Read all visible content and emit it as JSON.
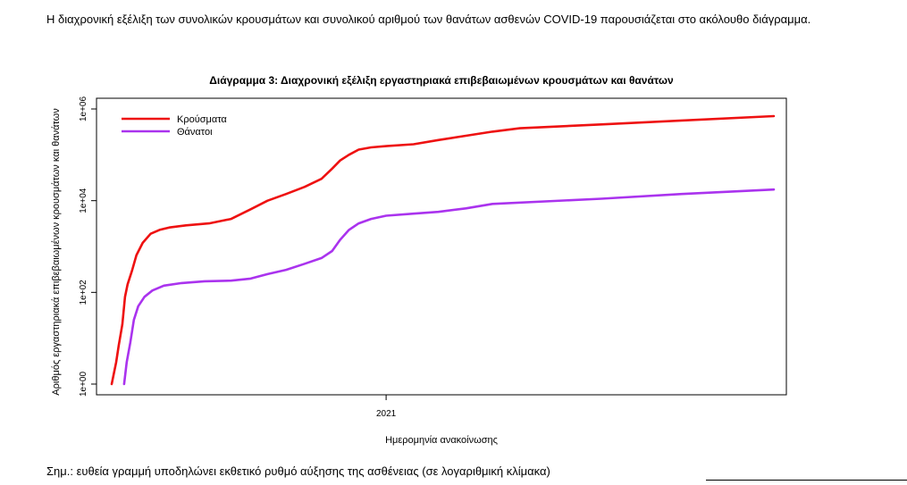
{
  "intro_text": "Η διαχρονική εξέλιξη των συνολικών κρουσμάτων και συνολικού αριθμού των θανάτων ασθενών COVID-19 παρουσιάζεται στο ακόλουθο διάγραμμα.",
  "note_text": "Σημ.: ευθεία γραμμή υποδηλώνει εκθετικό ρυθμό αύξησης της ασθένειας (σε λογαριθμική κλίμακα)",
  "chart_data": {
    "type": "line",
    "title": "Διάγραμμα 3: Διαχρονική εξέλιξη εργαστηριακά επιβεβαιωμένων κρουσμάτων και θανάτων",
    "xlabel": "Ημερομηνία ανακοίνωσης",
    "ylabel": "Αριθμός εργαστηριακά επιβεβαιωμένων κρουσμάτων και θανάτων",
    "y_scale": "log10",
    "ylim": [
      1,
      1000000
    ],
    "y_ticks": [
      {
        "value": 1,
        "label": "1e+00"
      },
      {
        "value": 100,
        "label": "1e+02"
      },
      {
        "value": 10000,
        "label": "1e+04"
      },
      {
        "value": 1000000,
        "label": "1e+06"
      }
    ],
    "xlim": [
      "2020-02-26",
      "2022-03-15"
    ],
    "x_ticks": [
      {
        "value": "2021-01-01",
        "label": "2021"
      }
    ],
    "grid": false,
    "legend_position": "top-left",
    "series": [
      {
        "name": "Κρούσματα",
        "color": "#ee1111",
        "x": [
          "2020-02-26",
          "2020-03-02",
          "2020-03-05",
          "2020-03-09",
          "2020-03-12",
          "2020-03-15",
          "2020-03-20",
          "2020-03-25",
          "2020-04-01",
          "2020-04-10",
          "2020-04-20",
          "2020-05-01",
          "2020-05-20",
          "2020-06-15",
          "2020-07-10",
          "2020-08-01",
          "2020-08-20",
          "2020-09-10",
          "2020-10-01",
          "2020-10-20",
          "2020-11-01",
          "2020-11-10",
          "2020-11-20",
          "2020-12-01",
          "2020-12-15",
          "2021-01-01",
          "2021-02-01",
          "2021-03-01",
          "2021-04-01",
          "2021-05-01",
          "2021-06-01",
          "2021-09-01",
          "2021-12-01",
          "2022-03-15"
        ],
        "y": [
          1,
          3,
          7,
          20,
          80,
          150,
          300,
          650,
          1200,
          1900,
          2300,
          2600,
          2900,
          3200,
          4000,
          6500,
          10000,
          14000,
          20000,
          30000,
          50000,
          75000,
          100000,
          130000,
          145000,
          155000,
          170000,
          210000,
          260000,
          320000,
          380000,
          460000,
          560000,
          700000
        ]
      },
      {
        "name": "Θάνατοι",
        "color": "#aa33ee",
        "x": [
          "2020-03-11",
          "2020-03-14",
          "2020-03-18",
          "2020-03-22",
          "2020-03-27",
          "2020-04-03",
          "2020-04-12",
          "2020-04-25",
          "2020-05-15",
          "2020-06-10",
          "2020-07-10",
          "2020-08-01",
          "2020-08-20",
          "2020-09-10",
          "2020-10-01",
          "2020-10-20",
          "2020-11-01",
          "2020-11-10",
          "2020-11-20",
          "2020-12-01",
          "2020-12-15",
          "2021-01-01",
          "2021-02-01",
          "2021-03-01",
          "2021-04-01",
          "2021-05-01",
          "2021-09-01",
          "2021-12-01",
          "2022-03-15"
        ],
        "y": [
          1,
          3,
          8,
          25,
          50,
          80,
          110,
          140,
          160,
          175,
          180,
          200,
          250,
          310,
          420,
          560,
          800,
          1400,
          2300,
          3200,
          4000,
          4700,
          5200,
          5700,
          6800,
          8500,
          11000,
          14000,
          17500
        ]
      }
    ]
  }
}
